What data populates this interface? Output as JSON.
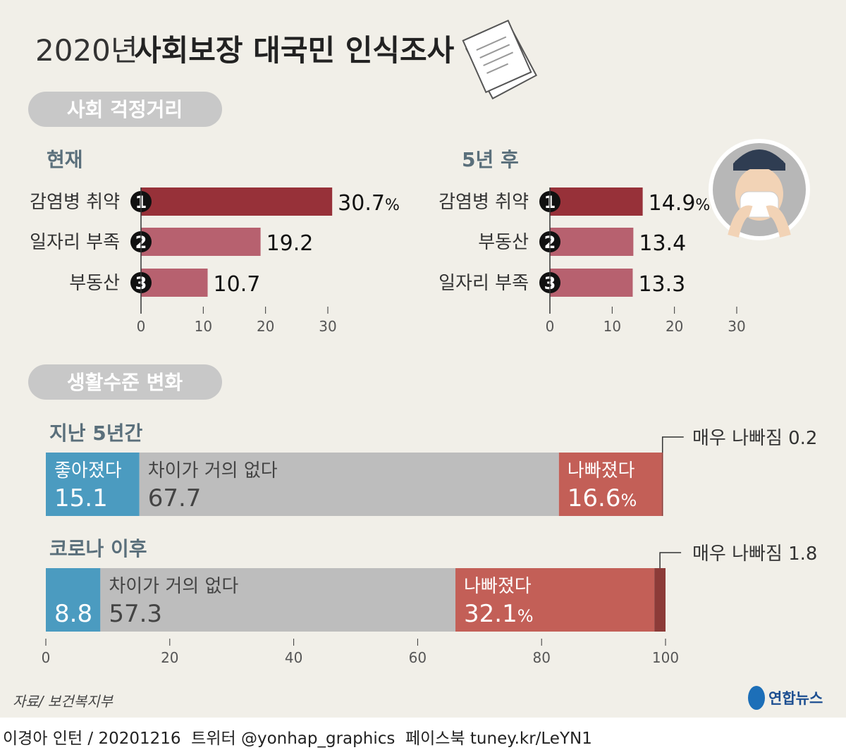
{
  "title": {
    "year": "2020년",
    "main": "사회보장 대국민 인식조사"
  },
  "colors": {
    "background": "#f1efe8",
    "rank1": "#973139",
    "rank_other": "#b7616f",
    "better": "#4b9bc0",
    "same": "#bdbdbd",
    "worse": "#c35f57",
    "much_worse": "#8c3b38",
    "heading": "#5a6f7b",
    "pill": "#c8c8c8"
  },
  "icons": [
    "document-stack-icon",
    "masked-person-icon",
    "yonhap-logo-icon"
  ],
  "chart_data": [
    {
      "type": "bar",
      "orientation": "horizontal",
      "section": "사회 걱정거리",
      "title": "현재",
      "ranks": [
        "1",
        "2",
        "3"
      ],
      "categories": [
        "감염병 취약",
        "일자리 부족",
        "부동산"
      ],
      "values": [
        30.7,
        19.2,
        10.7
      ],
      "value_labels": [
        "30.7",
        "19.2",
        "10.7"
      ],
      "unit": "%",
      "xlim": [
        0,
        30
      ],
      "xticks": [
        "0",
        "10",
        "20",
        "30"
      ]
    },
    {
      "type": "bar",
      "orientation": "horizontal",
      "title": "5년 후",
      "ranks": [
        "1",
        "2",
        "3"
      ],
      "categories": [
        "감염병 취약",
        "부동산",
        "일자리 부족"
      ],
      "values": [
        14.9,
        13.4,
        13.3
      ],
      "value_labels": [
        "14.9",
        "13.4",
        "13.3"
      ],
      "unit": "%",
      "xlim": [
        0,
        30
      ],
      "xticks": [
        "0",
        "10",
        "20",
        "30"
      ]
    },
    {
      "type": "bar",
      "stacked": true,
      "orientation": "horizontal",
      "section": "생활수준 변화",
      "categories": [
        "지난 5년간",
        "코로나 이후"
      ],
      "series": [
        {
          "name": "좋아졌다",
          "values": [
            15.1,
            8.8
          ]
        },
        {
          "name": "차이가 거의 없다",
          "values": [
            67.7,
            57.3
          ]
        },
        {
          "name": "나빠졌다",
          "values": [
            16.6,
            32.1
          ]
        },
        {
          "name": "매우 나빠짐",
          "values": [
            0.2,
            1.8
          ]
        }
      ],
      "unit": "%",
      "xlim": [
        0,
        100
      ],
      "xticks": [
        "0",
        "20",
        "40",
        "60",
        "80",
        "100"
      ]
    }
  ],
  "source": "자료/ 보건복지부",
  "logo": "연합뉴스",
  "credit": "이경아 인턴 / 20201216  트위터 @yonhap_graphics  페이스북 tuney.kr/LeYN1"
}
